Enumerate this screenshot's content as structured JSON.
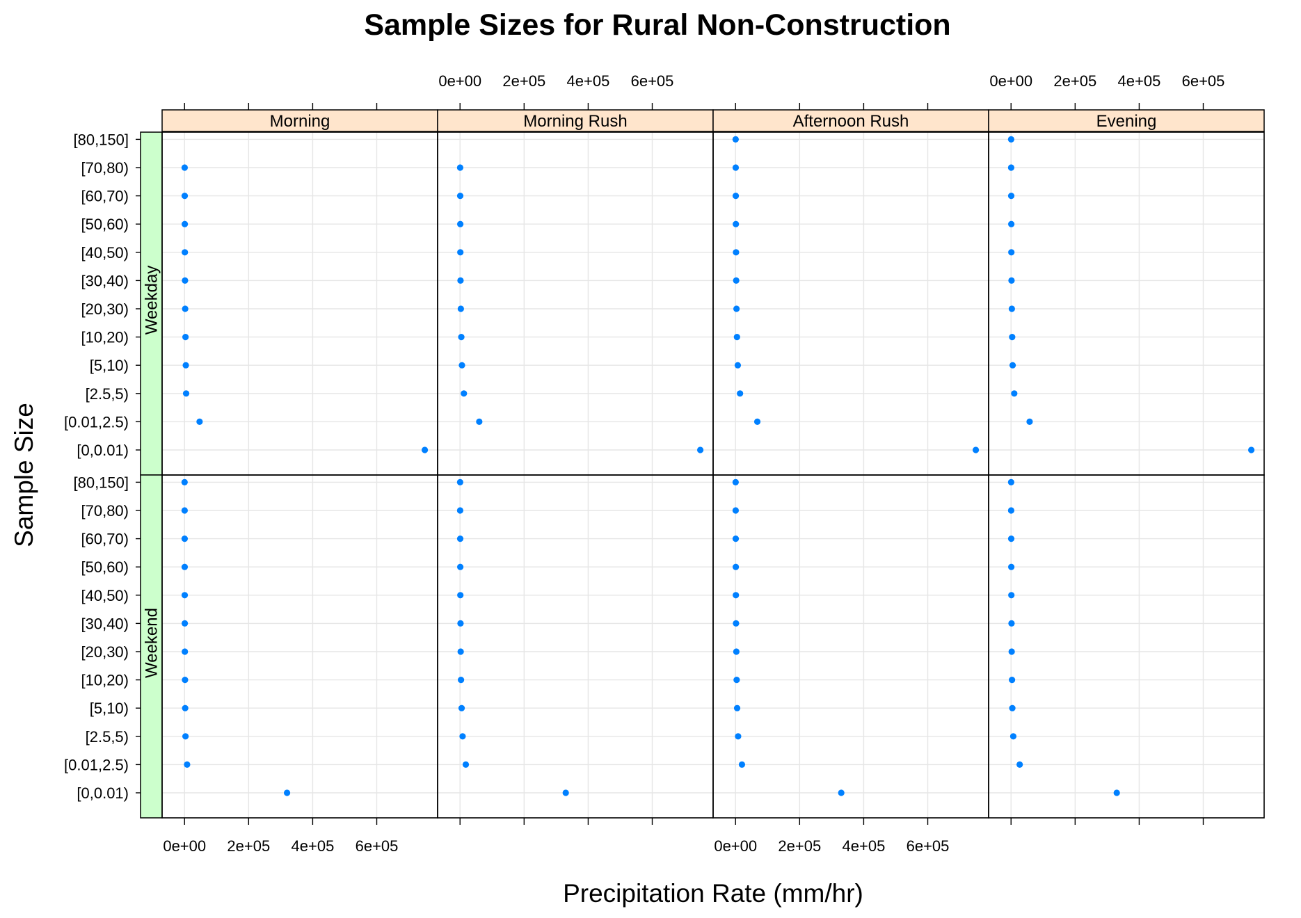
{
  "chart_data": {
    "type": "scatter",
    "title": "Sample Sizes for Rural Non-Construction",
    "xlabel": "Precipitation Rate (mm/hr)",
    "ylabel": "Sample Size",
    "xlim": [
      -70000,
      790000
    ],
    "x_ticks": [
      0,
      200000,
      400000,
      600000
    ],
    "x_tick_labels": [
      "0e+00",
      "2e+05",
      "4e+05",
      "6e+05"
    ],
    "categories": [
      "[0,0.01)",
      "[0.01,2.5)",
      "[2.5,5)",
      "[5,10)",
      "[10,20)",
      "[20,30)",
      "[30,40)",
      "[40,50)",
      "[50,60)",
      "[60,70)",
      "[70,80)",
      "[80,150]"
    ],
    "columns": [
      "Morning",
      "Morning Rush",
      "Afternoon Rush",
      "Evening"
    ],
    "rows": [
      "Weekday",
      "Weekend"
    ],
    "grid": true,
    "colors": {
      "point": "#0080ff",
      "column_strip": "#ffe5cc",
      "row_strip": "#ccffcc",
      "grid": "#e6e6e6",
      "frame": "#000000"
    },
    "panels": [
      {
        "row": "Weekday",
        "column": "Morning",
        "values": [
          750000,
          47000,
          5000,
          4000,
          3000,
          2000,
          1500,
          1000,
          800,
          600,
          400,
          null
        ]
      },
      {
        "row": "Weekday",
        "column": "Morning Rush",
        "values": [
          750000,
          60000,
          12000,
          6000,
          4000,
          2500,
          1500,
          1000,
          800,
          600,
          400,
          null
        ]
      },
      {
        "row": "Weekday",
        "column": "Afternoon Rush",
        "values": [
          750000,
          68000,
          14000,
          7000,
          4500,
          3000,
          2000,
          1500,
          1000,
          700,
          500,
          300
        ]
      },
      {
        "row": "Weekday",
        "column": "Evening",
        "values": [
          750000,
          58000,
          10000,
          5000,
          3500,
          2500,
          1500,
          1000,
          800,
          600,
          400,
          300
        ]
      },
      {
        "row": "Weekend",
        "column": "Morning",
        "values": [
          320000,
          8000,
          3000,
          2000,
          1500,
          1000,
          800,
          600,
          500,
          400,
          300,
          200
        ]
      },
      {
        "row": "Weekend",
        "column": "Morning Rush",
        "values": [
          330000,
          18000,
          8000,
          5000,
          3000,
          2000,
          1500,
          1000,
          800,
          600,
          400,
          300
        ]
      },
      {
        "row": "Weekend",
        "column": "Afternoon Rush",
        "values": [
          330000,
          20000,
          8000,
          5000,
          3500,
          2500,
          1500,
          1000,
          800,
          600,
          400,
          300
        ]
      },
      {
        "row": "Weekend",
        "column": "Evening",
        "values": [
          330000,
          27000,
          7000,
          4000,
          3000,
          2000,
          1500,
          1000,
          800,
          600,
          400,
          300
        ]
      }
    ]
  }
}
